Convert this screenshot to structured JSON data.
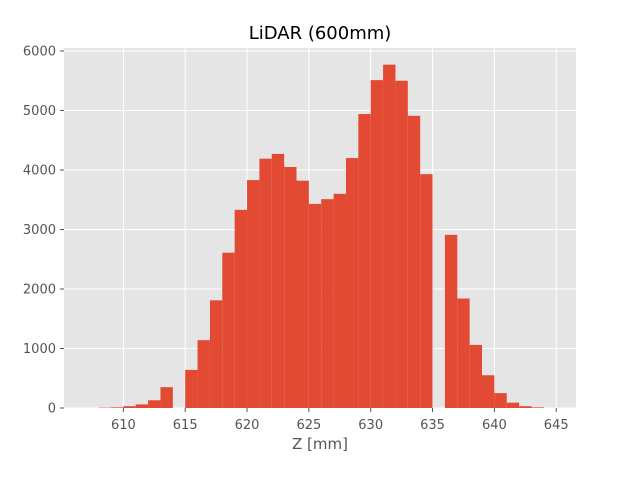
{
  "chart_data": {
    "type": "bar",
    "title": "LiDAR (600mm)",
    "xlabel": "Z [mm]",
    "ylabel": "",
    "xlim": [
      605.2,
      646.6
    ],
    "ylim": [
      0,
      6050
    ],
    "xticks": [
      610,
      615,
      620,
      625,
      630,
      635,
      640,
      645
    ],
    "yticks": [
      0,
      1000,
      2000,
      3000,
      4000,
      5000,
      6000
    ],
    "grid": true,
    "bins": [
      {
        "x0": 608.0,
        "x1": 609.0,
        "value": 5
      },
      {
        "x0": 609.0,
        "x1": 610.0,
        "value": 10
      },
      {
        "x0": 610.0,
        "x1": 611.0,
        "value": 30
      },
      {
        "x0": 611.0,
        "x1": 612.0,
        "value": 60
      },
      {
        "x0": 612.0,
        "x1": 613.0,
        "value": 130
      },
      {
        "x0": 613.0,
        "x1": 614.0,
        "value": 350
      },
      {
        "x0": 614.0,
        "x1": 615.0,
        "value": 0
      },
      {
        "x0": 615.0,
        "x1": 616.0,
        "value": 640
      },
      {
        "x0": 616.0,
        "x1": 617.0,
        "value": 1140
      },
      {
        "x0": 617.0,
        "x1": 618.0,
        "value": 1810
      },
      {
        "x0": 618.0,
        "x1": 619.0,
        "value": 2610
      },
      {
        "x0": 619.0,
        "x1": 620.0,
        "value": 3330
      },
      {
        "x0": 620.0,
        "x1": 621.0,
        "value": 3830
      },
      {
        "x0": 621.0,
        "x1": 622.0,
        "value": 4190
      },
      {
        "x0": 622.0,
        "x1": 623.0,
        "value": 4270
      },
      {
        "x0": 623.0,
        "x1": 624.0,
        "value": 4050
      },
      {
        "x0": 624.0,
        "x1": 625.0,
        "value": 3820
      },
      {
        "x0": 625.0,
        "x1": 626.0,
        "value": 3430
      },
      {
        "x0": 626.0,
        "x1": 627.0,
        "value": 3510
      },
      {
        "x0": 627.0,
        "x1": 628.0,
        "value": 3600
      },
      {
        "x0": 628.0,
        "x1": 629.0,
        "value": 4200
      },
      {
        "x0": 629.0,
        "x1": 630.0,
        "value": 4940
      },
      {
        "x0": 630.0,
        "x1": 631.0,
        "value": 5510
      },
      {
        "x0": 631.0,
        "x1": 632.0,
        "value": 5770
      },
      {
        "x0": 632.0,
        "x1": 633.0,
        "value": 5500
      },
      {
        "x0": 633.0,
        "x1": 634.0,
        "value": 4910
      },
      {
        "x0": 634.0,
        "x1": 635.0,
        "value": 3930
      },
      {
        "x0": 635.0,
        "x1": 636.0,
        "value": 0
      },
      {
        "x0": 636.0,
        "x1": 637.0,
        "value": 2910
      },
      {
        "x0": 637.0,
        "x1": 638.0,
        "value": 1840
      },
      {
        "x0": 638.0,
        "x1": 639.0,
        "value": 1060
      },
      {
        "x0": 639.0,
        "x1": 640.0,
        "value": 550
      },
      {
        "x0": 640.0,
        "x1": 641.0,
        "value": 250
      },
      {
        "x0": 641.0,
        "x1": 642.0,
        "value": 90
      },
      {
        "x0": 642.0,
        "x1": 643.0,
        "value": 30
      },
      {
        "x0": 643.0,
        "x1": 644.0,
        "value": 10
      }
    ],
    "colors": {
      "bar": "#e24a33",
      "plot_background": "#e5e5e5",
      "grid": "#ffffff",
      "tick": "#555555",
      "title": "#000000"
    }
  }
}
